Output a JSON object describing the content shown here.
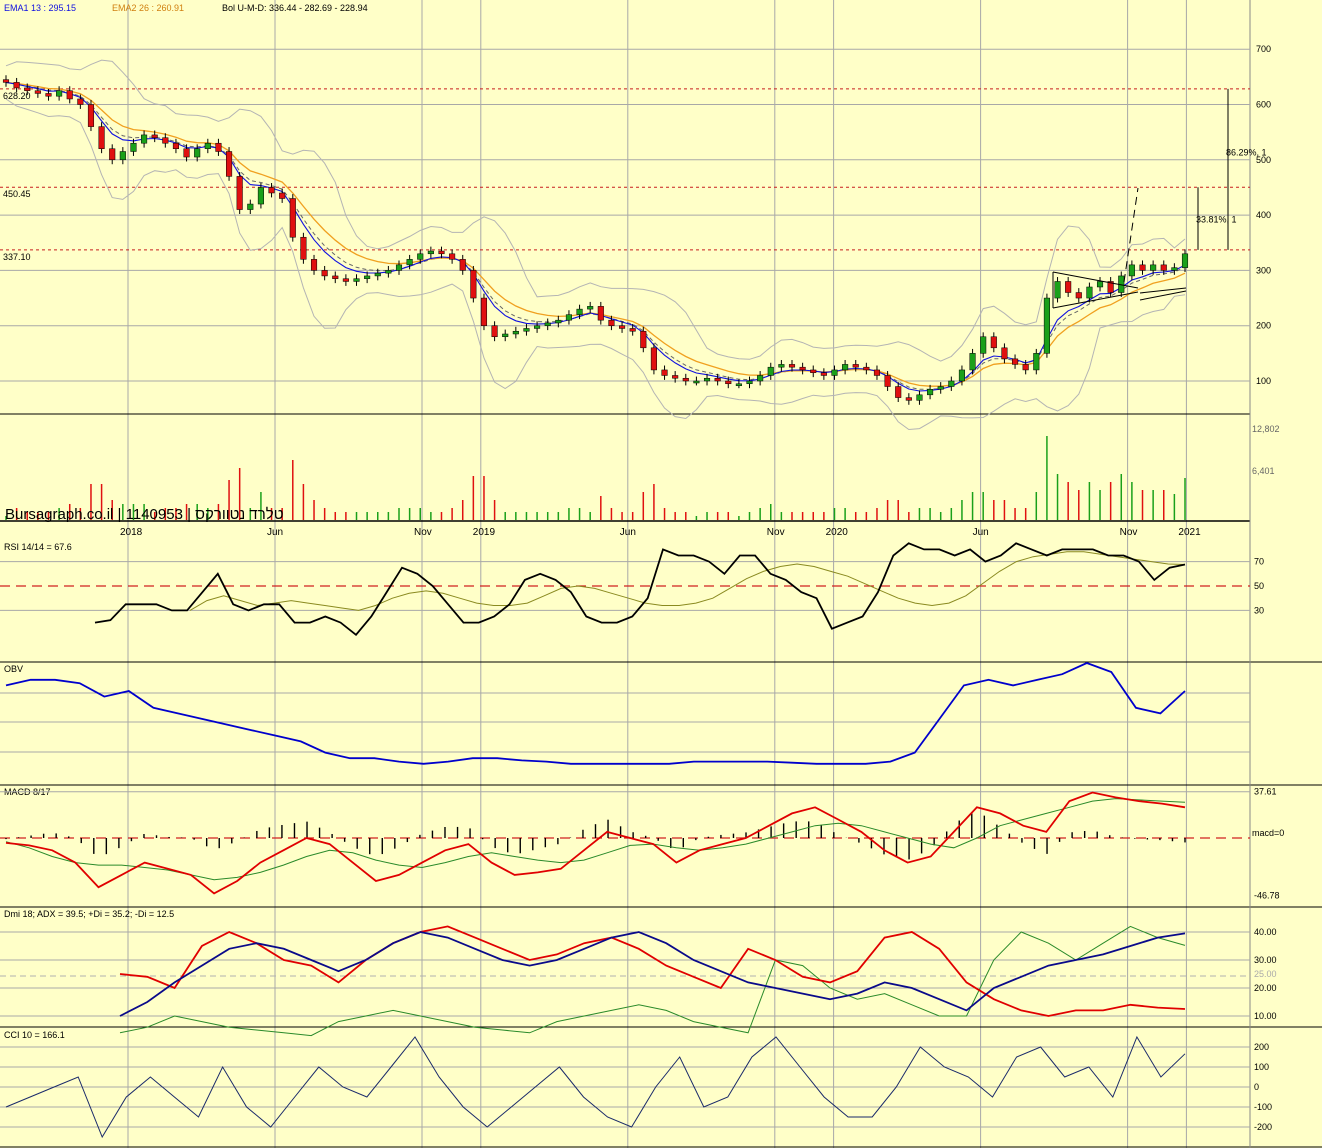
{
  "colors": {
    "background": "#ffffc8",
    "grid": "#a8a8a8",
    "up_candle": "#1aa01a",
    "down_candle": "#e01010",
    "ema1": "#1010e0",
    "ema2": "#f0a020",
    "bollinger": "#b4b4b4",
    "resistance": "#c81e1e",
    "rsi": "#000000",
    "rsi_signal": "#8a8a20",
    "obv": "#0000cc",
    "macd": "#e00000",
    "macd_signal": "#2a8a2a",
    "adx": "#0a0a8a",
    "plus_di": "#2a8a2a",
    "minus_di": "#e00000",
    "cci": "#1a2a6a"
  },
  "header": {
    "ema1": "EMA1 13 : 295.15",
    "ema2": "EMA2 26 : 260.91",
    "bollinger": "Bol U-M-D: 336.44 - 282.69 - 228.94"
  },
  "watermark": "Bursagraph.co.il | 1140953 | טלרד נטוורקס",
  "x_axis": {
    "labels": [
      {
        "text": "2018",
        "month": 0
      },
      {
        "text": "Jun",
        "month": 5
      },
      {
        "text": "Nov",
        "month": 10
      },
      {
        "text": "2019",
        "month": 12
      },
      {
        "text": "Jun",
        "month": 17
      },
      {
        "text": "Nov",
        "month": 22
      },
      {
        "text": "2020",
        "month": 24
      },
      {
        "text": "Jun",
        "month": 29
      },
      {
        "text": "Nov",
        "month": 34
      },
      {
        "text": "2021",
        "month": 36
      }
    ]
  },
  "price_panel": {
    "y_ticks": [
      "100",
      "200",
      "300",
      "400",
      "500",
      "600",
      "700"
    ],
    "levels": [
      {
        "label": "628.20",
        "value": 628.2
      },
      {
        "label": "450.45",
        "value": 450.45
      },
      {
        "label": "337.10",
        "value": 337.1
      }
    ],
    "annotations": [
      {
        "label": "86.29%, 1",
        "from": 337.1,
        "to": 628.2
      },
      {
        "label": "33.81%, 1",
        "from": 337.1,
        "to": 450.45
      }
    ]
  },
  "volume_panel": {
    "ticks": [
      "12,802",
      "6,401"
    ]
  },
  "rsi_panel": {
    "title": "RSI 14/14 = 67.6",
    "ticks": [
      "70",
      "50",
      "30"
    ]
  },
  "obv_panel": {
    "title": "OBV"
  },
  "macd_panel": {
    "title": "MACD 8/17",
    "ticks": [
      "37.61",
      "macd=0",
      "-46.78"
    ]
  },
  "dmi_panel": {
    "title": "Dmi 18; ADX = 39.5; +Di = 35.2; -Di = 12.5",
    "ticks": [
      "40.00",
      "30.00",
      "25.00",
      "20.00",
      "10.00"
    ]
  },
  "cci_panel": {
    "title": "CCI 10 = 166.1",
    "ticks": [
      "200",
      "100",
      "0",
      "-100",
      "-200"
    ]
  },
  "chart_data": {
    "type": "candlestick",
    "price_close": [
      640,
      630,
      625,
      620,
      615,
      625,
      610,
      600,
      560,
      520,
      500,
      515,
      530,
      545,
      540,
      530,
      520,
      505,
      520,
      530,
      515,
      470,
      410,
      420,
      450,
      440,
      430,
      360,
      320,
      300,
      290,
      285,
      280,
      285,
      290,
      295,
      300,
      310,
      320,
      330,
      335,
      330,
      320,
      300,
      250,
      200,
      180,
      185,
      190,
      195,
      200,
      205,
      210,
      220,
      230,
      235,
      210,
      200,
      195,
      190,
      160,
      120,
      110,
      105,
      100,
      100,
      105,
      100,
      95,
      95,
      100,
      110,
      125,
      130,
      125,
      120,
      115,
      110,
      120,
      130,
      125,
      120,
      110,
      90,
      70,
      65,
      75,
      85,
      90,
      100,
      120,
      150,
      180,
      160,
      140,
      130,
      120,
      150,
      250,
      280,
      260,
      250,
      270,
      280,
      260,
      290,
      310,
      300,
      310,
      300,
      305,
      330
    ],
    "dates_range": [
      "2017-11",
      "2021-01"
    ],
    "ema1_last": 295.15,
    "ema2_last": 260.91,
    "bollinger_last": {
      "upper": 336.44,
      "middle": 282.69,
      "lower": 228.94
    },
    "rsi": [
      20,
      22,
      35,
      35,
      35,
      30,
      30,
      45,
      60,
      35,
      30,
      35,
      35,
      20,
      20,
      25,
      20,
      10,
      25,
      45,
      65,
      60,
      50,
      35,
      20,
      20,
      25,
      35,
      55,
      60,
      55,
      45,
      25,
      20,
      20,
      25,
      40,
      80,
      75,
      75,
      70,
      60,
      75,
      75,
      60,
      55,
      45,
      40,
      15,
      20,
      25,
      45,
      75,
      85,
      80,
      80,
      75,
      80,
      70,
      75,
      85,
      80,
      75,
      80,
      80,
      80,
      75,
      75,
      70,
      55,
      65,
      67.6
    ],
    "rsi_signal": [
      30,
      38,
      42,
      38,
      34,
      36,
      38,
      36,
      34,
      32,
      30,
      34,
      40,
      44,
      46,
      44,
      40,
      36,
      34,
      34,
      36,
      42,
      48,
      50,
      48,
      44,
      40,
      36,
      34,
      34,
      36,
      40,
      48,
      56,
      62,
      66,
      68,
      66,
      62,
      58,
      52,
      46,
      40,
      36,
      34,
      36,
      42,
      52,
      62,
      70,
      74,
      76,
      78,
      78,
      76,
      74,
      72,
      70,
      68,
      67.6
    ],
    "obv": [
      0.8,
      0.85,
      0.85,
      0.82,
      0.7,
      0.75,
      0.6,
      0.55,
      0.5,
      0.45,
      0.4,
      0.35,
      0.3,
      0.2,
      0.15,
      0.15,
      0.12,
      0.1,
      0.12,
      0.15,
      0.15,
      0.13,
      0.12,
      0.1,
      0.1,
      0.1,
      0.1,
      0.1,
      0.12,
      0.12,
      0.12,
      0.12,
      0.11,
      0.1,
      0.1,
      0.1,
      0.12,
      0.2,
      0.5,
      0.8,
      0.85,
      0.8,
      0.85,
      0.9,
      1.0,
      0.92,
      0.6,
      0.55,
      0.75
    ],
    "macd": [
      -4,
      -6,
      -10,
      -20,
      -40,
      -30,
      -20,
      -25,
      -30,
      -45,
      -35,
      -20,
      -10,
      0,
      -5,
      -20,
      -35,
      -30,
      -20,
      -10,
      -5,
      -20,
      -30,
      -28,
      -25,
      -10,
      5,
      0,
      -5,
      -20,
      -10,
      -5,
      0,
      10,
      20,
      25,
      15,
      5,
      -10,
      -20,
      -15,
      5,
      25,
      20,
      10,
      5,
      30,
      37,
      33,
      30,
      28,
      25
    ],
    "macd_signal": [
      -3,
      -8,
      -15,
      -20,
      -22,
      -22,
      -24,
      -26,
      -30,
      -34,
      -32,
      -28,
      -22,
      -15,
      -10,
      -12,
      -18,
      -22,
      -24,
      -20,
      -15,
      -12,
      -15,
      -18,
      -20,
      -18,
      -12,
      -6,
      -5,
      -8,
      -10,
      -8,
      -5,
      0,
      5,
      10,
      12,
      10,
      5,
      0,
      -5,
      -8,
      0,
      10,
      15,
      20,
      25,
      30,
      32,
      31,
      30,
      29
    ],
    "adx": [
      10,
      15,
      22,
      28,
      34,
      36,
      34,
      30,
      26,
      30,
      36,
      40,
      38,
      34,
      30,
      28,
      30,
      34,
      38,
      40,
      36,
      30,
      26,
      22,
      20,
      18,
      16,
      18,
      22,
      20,
      16,
      12,
      20,
      24,
      28,
      30,
      32,
      35,
      38,
      39.5
    ],
    "plus_di": [
      4,
      6,
      10,
      8,
      6,
      5,
      4,
      3,
      8,
      10,
      12,
      10,
      8,
      6,
      5,
      4,
      8,
      10,
      12,
      14,
      12,
      8,
      6,
      4,
      30,
      28,
      20,
      16,
      18,
      14,
      10,
      10,
      30,
      40,
      36,
      30,
      36,
      42,
      38,
      35.2
    ],
    "minus_di": [
      25,
      24,
      20,
      35,
      40,
      36,
      30,
      28,
      22,
      30,
      36,
      40,
      42,
      38,
      34,
      30,
      32,
      36,
      38,
      34,
      28,
      24,
      20,
      34,
      30,
      24,
      22,
      26,
      38,
      40,
      34,
      22,
      16,
      12,
      10,
      12,
      12,
      14,
      13,
      12.5
    ],
    "cci": [
      -100,
      -50,
      0,
      50,
      -250,
      -50,
      50,
      -50,
      -150,
      100,
      -100,
      -200,
      -50,
      100,
      0,
      -50,
      100,
      250,
      50,
      -100,
      -200,
      -100,
      0,
      100,
      -50,
      -150,
      -200,
      0,
      150,
      -100,
      -50,
      150,
      250,
      100,
      -50,
      -150,
      -150,
      0,
      200,
      100,
      50,
      -50,
      150,
      200,
      50,
      100,
      -50,
      250,
      50,
      166.1
    ]
  }
}
